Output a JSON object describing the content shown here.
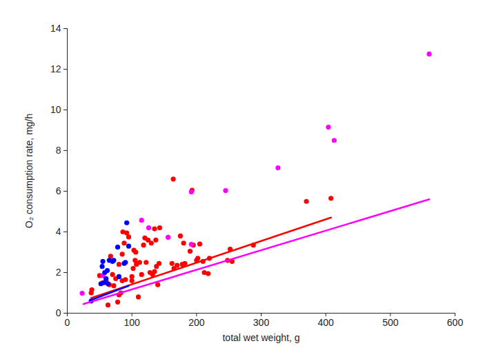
{
  "chart_data": {
    "type": "scatter",
    "x_label": "total wet weight, g",
    "y_label": "O₂ consumption rate, mg/h",
    "xlim": [
      0,
      600
    ],
    "xticks": [
      0,
      100,
      200,
      300,
      400,
      500,
      600
    ],
    "ylim": [
      0,
      14
    ],
    "yticks": [
      0,
      2,
      4,
      6,
      8,
      10,
      12,
      14
    ],
    "grid": false,
    "series": [
      {
        "type": "scatter",
        "color": "#ff0000",
        "marker": "circle",
        "x": [
          37,
          38,
          50,
          55,
          60,
          63,
          65,
          67,
          70,
          72,
          75,
          78,
          80,
          80,
          83,
          85,
          85,
          86,
          88,
          90,
          92,
          95,
          100,
          100,
          102,
          103,
          105,
          106,
          107,
          110,
          112,
          115,
          118,
          120,
          122,
          125,
          128,
          130,
          132,
          135,
          135,
          137,
          138,
          140,
          142,
          143,
          162,
          164,
          165,
          170,
          175,
          178,
          180,
          182,
          190,
          193,
          195,
          200,
          202,
          205,
          210,
          212,
          218,
          220,
          248,
          252,
          255,
          288,
          370,
          408
        ],
        "values": [
          1.0,
          1.15,
          1.85,
          1.5,
          1.6,
          0.4,
          1.4,
          2.8,
          1.9,
          1.35,
          1.7,
          0.55,
          0.9,
          2.4,
          1.0,
          2.9,
          1.6,
          4.0,
          3.45,
          1.65,
          3.95,
          3.75,
          1.6,
          1.8,
          2.2,
          3.1,
          2.6,
          3.0,
          2.4,
          0.8,
          2.5,
          1.9,
          3.35,
          3.7,
          2.5,
          3.6,
          2.0,
          3.45,
          1.9,
          4.15,
          2.05,
          3.6,
          2.3,
          1.4,
          2.45,
          4.2,
          2.45,
          6.6,
          2.2,
          2.35,
          3.8,
          2.4,
          3.45,
          2.45,
          3.05,
          6.05,
          3.35,
          2.6,
          2.7,
          3.4,
          2.55,
          2.0,
          1.95,
          2.7,
          2.6,
          3.15,
          2.55,
          3.35,
          5.5,
          5.65
        ]
      },
      {
        "type": "scatter",
        "color": "#ff00ff",
        "marker": "circle",
        "x": [
          23,
          55,
          115,
          126,
          156,
          192,
          192,
          245,
          326,
          404,
          413,
          560
        ],
        "values": [
          0.98,
          1.85,
          4.57,
          4.2,
          3.73,
          3.39,
          5.97,
          6.03,
          7.15,
          9.15,
          8.5,
          12.75
        ]
      },
      {
        "type": "scatter",
        "color": "#0000ff",
        "marker": "circle",
        "x": [
          37,
          52,
          54,
          55,
          57,
          58,
          60,
          62,
          63,
          65,
          70,
          72,
          78,
          80,
          88,
          90,
          92,
          95
        ],
        "values": [
          0.6,
          1.45,
          2.3,
          2.55,
          1.5,
          2.0,
          1.7,
          2.1,
          1.45,
          2.6,
          2.55,
          2.6,
          3.25,
          1.8,
          2.45,
          2.5,
          4.45,
          3.3
        ]
      },
      {
        "type": "line",
        "color": "#ff0000",
        "line_style": "solid",
        "x": [
          37,
          408
        ],
        "values": [
          0.75,
          4.7
        ]
      },
      {
        "type": "line",
        "color": "#ff00ff",
        "line_style": "solid",
        "x": [
          25,
          560
        ],
        "values": [
          0.45,
          5.6
        ]
      },
      {
        "type": "line",
        "color": "#0000ff",
        "line_style": "solid",
        "x": [
          37,
          95
        ],
        "values": [
          0.65,
          1.35
        ]
      }
    ]
  }
}
